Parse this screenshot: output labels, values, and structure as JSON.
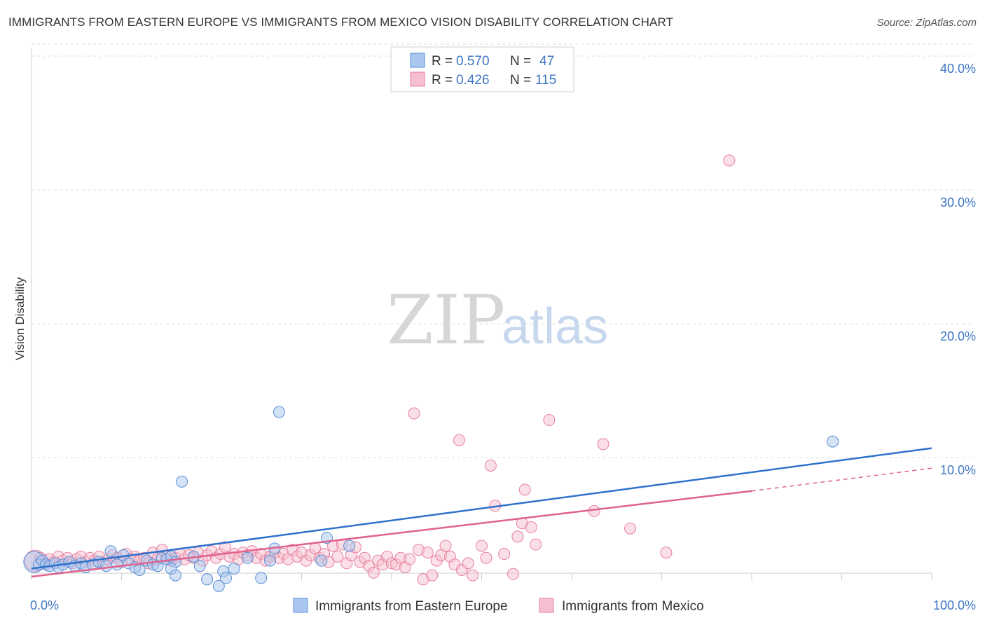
{
  "header": {
    "title": "IMMIGRANTS FROM EASTERN EUROPE VS IMMIGRANTS FROM MEXICO VISION DISABILITY CORRELATION CHART",
    "source": "Source: ZipAtlas.com"
  },
  "watermark": {
    "zip": "ZIP",
    "atlas": "atlas"
  },
  "legend": {
    "rows": [
      {
        "r_label": "R = ",
        "r_value": "0.570",
        "n_label": "N = ",
        "n_value": "47"
      },
      {
        "r_label": "R = ",
        "r_value": "0.426",
        "n_label": "N = ",
        "n_value": "115"
      }
    ]
  },
  "chart_data": {
    "type": "scatter",
    "title": "IMMIGRANTS FROM EASTERN EUROPE VS IMMIGRANTS FROM MEXICO VISION DISABILITY CORRELATION CHART",
    "xlabel": "",
    "ylabel": "Vision Disability",
    "xlim": [
      0,
      100
    ],
    "ylim": [
      0,
      42
    ],
    "x_tick_labels": [
      {
        "value": 0,
        "label": "0.0%"
      },
      {
        "value": 100,
        "label": "100.0%"
      }
    ],
    "y_tick_labels": [
      {
        "value": 10,
        "label": "10.0%"
      },
      {
        "value": 20,
        "label": "20.0%"
      },
      {
        "value": 30,
        "label": "30.0%"
      },
      {
        "value": 40,
        "label": "40.0%"
      }
    ],
    "grid": "horizontal dashed",
    "legend_position": "top-center",
    "colors": {
      "blue": "#5b8fd6",
      "blue_fill": "#a9c6ee",
      "blue_line": "#2f72cc",
      "pink": "#e8809f",
      "pink_fill": "#f5bfd0",
      "pink_line": "#e0628c"
    },
    "series": [
      {
        "name": "Immigrants from Eastern Europe",
        "color": "#5b8fd6",
        "r": 0.57,
        "n": 47,
        "trend": {
          "x": [
            0,
            100
          ],
          "y": [
            1.7,
            10.7
          ]
        },
        "points": [
          {
            "x": 0.3,
            "y": 2.2,
            "big": true
          },
          {
            "x": 0.8,
            "y": 2.0
          },
          {
            "x": 1.2,
            "y": 2.3
          },
          {
            "x": 1.6,
            "y": 2.0
          },
          {
            "x": 2.0,
            "y": 1.9
          },
          {
            "x": 2.6,
            "y": 2.1
          },
          {
            "x": 3.0,
            "y": 1.8
          },
          {
            "x": 3.5,
            "y": 2.0
          },
          {
            "x": 4.2,
            "y": 2.2
          },
          {
            "x": 4.8,
            "y": 1.9
          },
          {
            "x": 5.5,
            "y": 2.1
          },
          {
            "x": 6.0,
            "y": 1.8
          },
          {
            "x": 6.8,
            "y": 2.0
          },
          {
            "x": 7.5,
            "y": 2.2
          },
          {
            "x": 8.3,
            "y": 1.9
          },
          {
            "x": 8.8,
            "y": 3.0
          },
          {
            "x": 9.5,
            "y": 2.0
          },
          {
            "x": 10.2,
            "y": 2.7
          },
          {
            "x": 10.8,
            "y": 2.1
          },
          {
            "x": 11.5,
            "y": 1.8
          },
          {
            "x": 12.0,
            "y": 1.6
          },
          {
            "x": 12.8,
            "y": 2.3
          },
          {
            "x": 13.5,
            "y": 2.0
          },
          {
            "x": 14.0,
            "y": 1.9
          },
          {
            "x": 14.5,
            "y": 2.5
          },
          {
            "x": 15.0,
            "y": 2.4
          },
          {
            "x": 15.5,
            "y": 2.6
          },
          {
            "x": 16.0,
            "y": 2.2
          },
          {
            "x": 16.7,
            "y": 8.2
          },
          {
            "x": 15.5,
            "y": 1.7
          },
          {
            "x": 16.0,
            "y": 1.2
          },
          {
            "x": 18.0,
            "y": 2.6
          },
          {
            "x": 18.7,
            "y": 1.9
          },
          {
            "x": 19.5,
            "y": 0.9
          },
          {
            "x": 20.8,
            "y": 0.4
          },
          {
            "x": 21.3,
            "y": 1.5
          },
          {
            "x": 21.6,
            "y": 1.0
          },
          {
            "x": 22.5,
            "y": 1.7
          },
          {
            "x": 24.0,
            "y": 2.5
          },
          {
            "x": 25.5,
            "y": 1.0
          },
          {
            "x": 26.5,
            "y": 2.3
          },
          {
            "x": 27.0,
            "y": 3.2
          },
          {
            "x": 27.5,
            "y": 13.4
          },
          {
            "x": 32.2,
            "y": 2.3
          },
          {
            "x": 32.8,
            "y": 4.0
          },
          {
            "x": 35.3,
            "y": 3.4
          },
          {
            "x": 89.0,
            "y": 11.2
          }
        ]
      },
      {
        "name": "Immigrants from Mexico",
        "color": "#e8809f",
        "r": 0.426,
        "n": 115,
        "trend": {
          "x": [
            0,
            80
          ],
          "y": [
            1.1,
            7.5
          ]
        },
        "trend_dashed": {
          "x": [
            80,
            100
          ],
          "y": [
            7.5,
            9.2
          ]
        },
        "points": [
          {
            "x": 0.4,
            "y": 2.3,
            "big": true
          },
          {
            "x": 1.0,
            "y": 2.5
          },
          {
            "x": 1.5,
            "y": 2.1
          },
          {
            "x": 2.0,
            "y": 2.4
          },
          {
            "x": 2.5,
            "y": 2.2
          },
          {
            "x": 3.0,
            "y": 2.6
          },
          {
            "x": 3.5,
            "y": 2.3
          },
          {
            "x": 4.0,
            "y": 2.5
          },
          {
            "x": 4.5,
            "y": 2.1
          },
          {
            "x": 5.0,
            "y": 2.4
          },
          {
            "x": 5.5,
            "y": 2.6
          },
          {
            "x": 6.0,
            "y": 2.2
          },
          {
            "x": 6.5,
            "y": 2.5
          },
          {
            "x": 7.0,
            "y": 2.3
          },
          {
            "x": 7.5,
            "y": 2.6
          },
          {
            "x": 8.0,
            "y": 2.1
          },
          {
            "x": 8.5,
            "y": 2.4
          },
          {
            "x": 9.0,
            "y": 2.7
          },
          {
            "x": 9.5,
            "y": 2.5
          },
          {
            "x": 10.0,
            "y": 2.2
          },
          {
            "x": 10.5,
            "y": 2.8
          },
          {
            "x": 11.0,
            "y": 2.4
          },
          {
            "x": 11.5,
            "y": 2.6
          },
          {
            "x": 12.0,
            "y": 2.3
          },
          {
            "x": 12.5,
            "y": 2.5
          },
          {
            "x": 13.0,
            "y": 2.1
          },
          {
            "x": 13.5,
            "y": 2.9
          },
          {
            "x": 14.0,
            "y": 2.4
          },
          {
            "x": 14.5,
            "y": 3.1
          },
          {
            "x": 15.0,
            "y": 2.6
          },
          {
            "x": 15.5,
            "y": 2.3
          },
          {
            "x": 16.0,
            "y": 2.5
          },
          {
            "x": 16.5,
            "y": 2.8
          },
          {
            "x": 17.0,
            "y": 2.4
          },
          {
            "x": 17.5,
            "y": 2.7
          },
          {
            "x": 18.0,
            "y": 2.5
          },
          {
            "x": 18.5,
            "y": 2.9
          },
          {
            "x": 19.0,
            "y": 2.3
          },
          {
            "x": 19.5,
            "y": 2.7
          },
          {
            "x": 20.0,
            "y": 3.0
          },
          {
            "x": 20.5,
            "y": 2.5
          },
          {
            "x": 21.0,
            "y": 2.8
          },
          {
            "x": 21.5,
            "y": 3.3
          },
          {
            "x": 22.0,
            "y": 2.6
          },
          {
            "x": 22.5,
            "y": 2.8
          },
          {
            "x": 23.0,
            "y": 2.4
          },
          {
            "x": 23.5,
            "y": 2.9
          },
          {
            "x": 24.0,
            "y": 2.7
          },
          {
            "x": 24.5,
            "y": 3.0
          },
          {
            "x": 25.0,
            "y": 2.5
          },
          {
            "x": 25.5,
            "y": 2.8
          },
          {
            "x": 26.0,
            "y": 2.3
          },
          {
            "x": 26.5,
            "y": 2.6
          },
          {
            "x": 27.0,
            "y": 2.9
          },
          {
            "x": 27.5,
            "y": 2.5
          },
          {
            "x": 28.0,
            "y": 2.8
          },
          {
            "x": 28.5,
            "y": 2.4
          },
          {
            "x": 29.0,
            "y": 3.1
          },
          {
            "x": 29.5,
            "y": 2.6
          },
          {
            "x": 30.0,
            "y": 2.9
          },
          {
            "x": 30.5,
            "y": 2.3
          },
          {
            "x": 31.0,
            "y": 2.7
          },
          {
            "x": 31.5,
            "y": 3.2
          },
          {
            "x": 32.0,
            "y": 2.5
          },
          {
            "x": 32.5,
            "y": 2.8
          },
          {
            "x": 33.0,
            "y": 2.2
          },
          {
            "x": 33.5,
            "y": 3.4
          },
          {
            "x": 34.0,
            "y": 2.6
          },
          {
            "x": 34.5,
            "y": 3.5
          },
          {
            "x": 35.0,
            "y": 2.1
          },
          {
            "x": 35.5,
            "y": 2.7
          },
          {
            "x": 36.0,
            "y": 3.3
          },
          {
            "x": 36.5,
            "y": 2.2
          },
          {
            "x": 37.0,
            "y": 2.5
          },
          {
            "x": 37.5,
            "y": 1.9
          },
          {
            "x": 38.0,
            "y": 1.4
          },
          {
            "x": 38.5,
            "y": 2.3
          },
          {
            "x": 39.0,
            "y": 2.0
          },
          {
            "x": 39.5,
            "y": 2.6
          },
          {
            "x": 40.0,
            "y": 2.1
          },
          {
            "x": 40.5,
            "y": 2.0
          },
          {
            "x": 41.0,
            "y": 2.5
          },
          {
            "x": 41.5,
            "y": 1.8
          },
          {
            "x": 42.0,
            "y": 2.4
          },
          {
            "x": 42.5,
            "y": 13.3
          },
          {
            "x": 43.0,
            "y": 3.1
          },
          {
            "x": 43.5,
            "y": 0.9
          },
          {
            "x": 44.0,
            "y": 2.9
          },
          {
            "x": 44.5,
            "y": 1.2
          },
          {
            "x": 45.0,
            "y": 2.3
          },
          {
            "x": 45.5,
            "y": 2.7
          },
          {
            "x": 46.0,
            "y": 3.4
          },
          {
            "x": 46.5,
            "y": 2.6
          },
          {
            "x": 47.0,
            "y": 2.0
          },
          {
            "x": 47.5,
            "y": 11.3
          },
          {
            "x": 47.8,
            "y": 1.6
          },
          {
            "x": 48.5,
            "y": 2.1
          },
          {
            "x": 49.0,
            "y": 1.2
          },
          {
            "x": 50.0,
            "y": 3.4
          },
          {
            "x": 50.5,
            "y": 2.5
          },
          {
            "x": 51.0,
            "y": 9.4
          },
          {
            "x": 51.5,
            "y": 6.4
          },
          {
            "x": 52.5,
            "y": 2.8
          },
          {
            "x": 53.5,
            "y": 1.3
          },
          {
            "x": 54.0,
            "y": 4.1
          },
          {
            "x": 54.5,
            "y": 5.1
          },
          {
            "x": 54.8,
            "y": 7.6
          },
          {
            "x": 55.5,
            "y": 4.8
          },
          {
            "x": 56.0,
            "y": 3.5
          },
          {
            "x": 57.5,
            "y": 12.8
          },
          {
            "x": 62.5,
            "y": 6.0
          },
          {
            "x": 63.5,
            "y": 11.0
          },
          {
            "x": 66.5,
            "y": 4.7
          },
          {
            "x": 70.5,
            "y": 2.9
          },
          {
            "x": 77.5,
            "y": 32.2
          }
        ]
      }
    ]
  },
  "bottom_legend": {
    "items": [
      {
        "label": "Immigrants from Eastern Europe"
      },
      {
        "label": "Immigrants from Mexico"
      }
    ]
  }
}
